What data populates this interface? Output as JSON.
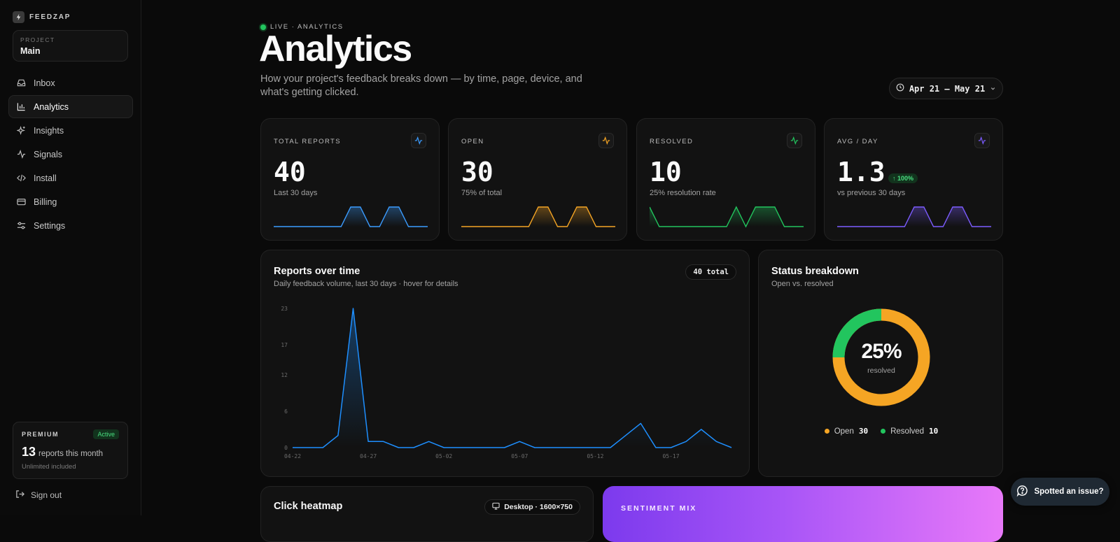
{
  "brand": {
    "name": "FEEDZAP"
  },
  "project": {
    "label": "PROJECT",
    "name": "Main"
  },
  "nav": [
    {
      "label": "Inbox",
      "icon": "inbox-icon"
    },
    {
      "label": "Analytics",
      "icon": "bar-chart-icon",
      "active": true
    },
    {
      "label": "Insights",
      "icon": "sparkles-icon"
    },
    {
      "label": "Signals",
      "icon": "activity-icon"
    },
    {
      "label": "Install",
      "icon": "code-icon"
    },
    {
      "label": "Billing",
      "icon": "card-icon"
    },
    {
      "label": "Settings",
      "icon": "sliders-icon"
    }
  ],
  "premium": {
    "label": "PREMIUM",
    "badge": "Active",
    "count": "13",
    "count_text": "reports this month",
    "sub": "Unlimited included"
  },
  "signout": {
    "label": "Sign out"
  },
  "header": {
    "live": "LIVE · ANALYTICS",
    "title": "Analytics",
    "subtitle": "How your project's feedback breaks down — by time, page, device, and what's getting clicked.",
    "date_range": "Apr 21 — May 21"
  },
  "stats": [
    {
      "label": "TOTAL REPORTS",
      "value": "40",
      "sub": "Last 30 days",
      "color": "#3b9cff",
      "spark": [
        0,
        0,
        0,
        0,
        0,
        0,
        0,
        0,
        1,
        1,
        0,
        0,
        1,
        1,
        0,
        0,
        0
      ]
    },
    {
      "label": "OPEN",
      "value": "30",
      "sub": "75% of total",
      "color": "#f5a524",
      "spark": [
        0,
        0,
        0,
        0,
        0,
        0,
        0,
        0,
        1,
        1,
        0,
        0,
        1,
        1,
        0,
        0,
        0
      ]
    },
    {
      "label": "RESOLVED",
      "value": "10",
      "sub": "25% resolution rate",
      "color": "#22c55e",
      "spark": [
        1,
        0,
        0,
        0,
        0,
        0,
        0,
        0,
        0,
        1,
        0,
        1,
        1,
        1,
        0,
        0,
        0
      ]
    },
    {
      "label": "AVG / DAY",
      "value": "1.3",
      "sub": "vs previous 30 days",
      "delta": "↑ 100%",
      "color": "#7c5cff",
      "spark": [
        0,
        0,
        0,
        0,
        0,
        0,
        0,
        0,
        1,
        1,
        0,
        0,
        1,
        1,
        0,
        0,
        0
      ]
    }
  ],
  "reports_over_time": {
    "title": "Reports over time",
    "subtitle": "Daily feedback volume, last 30 days · hover for details",
    "total": "40 total"
  },
  "status": {
    "title": "Status breakdown",
    "subtitle": "Open vs. resolved",
    "percent": "25%",
    "percent_label": "resolved",
    "open_label": "Open",
    "open_value": "30",
    "resolved_label": "Resolved",
    "resolved_value": "10",
    "open_color": "#f5a524",
    "resolved_color": "#22c55e"
  },
  "heatmap": {
    "title": "Click heatmap",
    "device": "Desktop · 1600×750"
  },
  "sentiment": {
    "label": "SENTIMENT MIX"
  },
  "feedback_widget": {
    "label": "Spotted an issue?"
  },
  "chart_data": {
    "type": "line",
    "x": [
      "04-22",
      "04-23",
      "04-24",
      "04-25",
      "04-26",
      "04-27",
      "04-28",
      "04-29",
      "04-30",
      "05-01",
      "05-02",
      "05-03",
      "05-04",
      "05-05",
      "05-06",
      "05-07",
      "05-08",
      "05-09",
      "05-10",
      "05-11",
      "05-12",
      "05-13",
      "05-14",
      "05-15",
      "05-16",
      "05-17",
      "05-18",
      "05-19",
      "05-20",
      "05-21"
    ],
    "values": [
      0,
      0,
      0,
      2,
      23,
      1,
      1,
      0,
      0,
      1,
      0,
      0,
      0,
      0,
      0,
      1,
      0,
      0,
      0,
      0,
      0,
      0,
      2,
      4,
      0,
      0,
      1,
      3,
      1,
      0
    ],
    "xticks": [
      "04-22",
      "04-27",
      "05-02",
      "05-07",
      "05-12",
      "05-17"
    ],
    "yticks": [
      "0",
      "6",
      "12",
      "17",
      "23"
    ],
    "ylim": [
      0,
      23
    ],
    "color": "#1e8fff"
  }
}
